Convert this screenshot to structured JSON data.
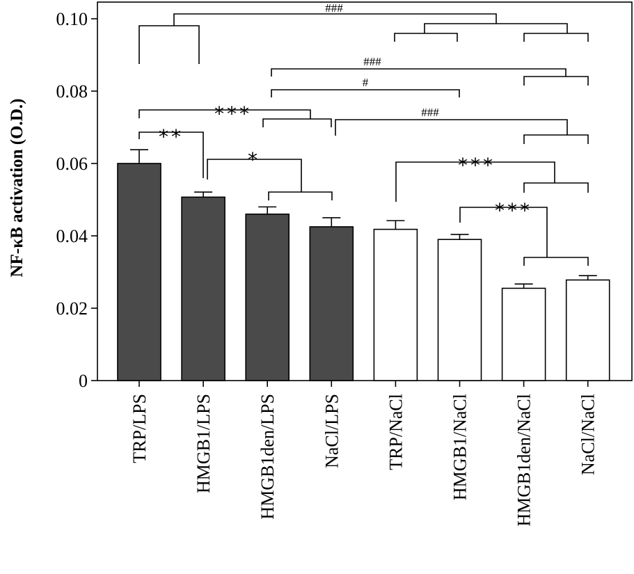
{
  "chart_data": {
    "type": "bar",
    "ylabel": "NF-κB activation (O.D.)",
    "categories": [
      "TRP/LPS",
      "HMGB1/LPS",
      "HMGB1den/LPS",
      "NaCl/LPS",
      "TRP/NaCl",
      "HMGB1/NaCl",
      "HMGB1den/NaCl",
      "NaCl/NaCl"
    ],
    "values": [
      0.06,
      0.0507,
      0.046,
      0.0425,
      0.0418,
      0.039,
      0.0255,
      0.0278
    ],
    "errors": [
      0.0038,
      0.0014,
      0.002,
      0.0025,
      0.0024,
      0.0014,
      0.0012,
      0.0012
    ],
    "colors": [
      "#4a4a4a",
      "#4a4a4a",
      "#4a4a4a",
      "#4a4a4a",
      "#ffffff",
      "#ffffff",
      "#ffffff",
      "#ffffff"
    ],
    "ylim": [
      0,
      0.1046
    ],
    "yticks": [
      0,
      0.02,
      0.04,
      0.06,
      0.08,
      {
        "value": 0.1,
        "label": "0.10"
      }
    ],
    "annotations": [
      "###",
      "###",
      "#",
      "***",
      "###",
      "**",
      "*",
      "***",
      "***"
    ]
  }
}
